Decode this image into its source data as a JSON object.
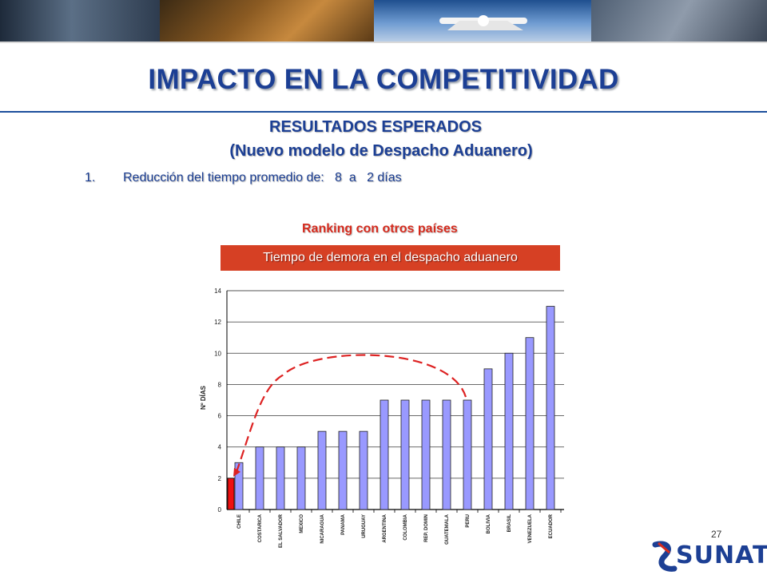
{
  "slide": {
    "title": "IMPACTO EN LA COMPETITIVIDAD",
    "subtitle_line1": "RESULTADOS ESPERADOS",
    "subtitle_line2": "(Nuevo modelo de Despacho Aduanero)",
    "list_number": "1.",
    "list_text": "Reducción del tiempo promedio de:   8  a   2 días",
    "ranking_heading": "Ranking con otros países",
    "box_label": "Tiempo de demora en el despacho aduanero",
    "page_number": "27",
    "logo_text": "SUNAT"
  },
  "colors": {
    "title": "#1c3f94",
    "accent_red": "#d64024",
    "bar": "#9999ff",
    "highlight_bar": "#ee1111",
    "arrow": "#dd2222"
  },
  "chart_data": {
    "type": "bar",
    "ylabel": "Nº DÍAS",
    "xlabel": "",
    "ylim": [
      0,
      14
    ],
    "yticks": [
      0,
      2,
      4,
      6,
      8,
      10,
      12,
      14
    ],
    "grid": true,
    "categories": [
      "CHILE",
      "COSTARICA",
      "EL SALVADOR",
      "MEXICO",
      "NICARAGUA",
      "PANAMA",
      "URUGUAY",
      "ARGENTINA",
      "COLOMBIA",
      "REP. DOMIN",
      "GUATEMALA",
      "PERU",
      "BOLIVIA",
      "BRASIL",
      "VENEZUELA",
      "ECUADOR"
    ],
    "values": [
      3,
      4,
      4,
      4,
      5,
      5,
      5,
      7,
      7,
      7,
      7,
      7,
      9,
      10,
      11,
      13
    ],
    "highlight": {
      "value": 2
    },
    "annotation": "dashed arrow from PERU bar to highlighted 2-day bar"
  }
}
